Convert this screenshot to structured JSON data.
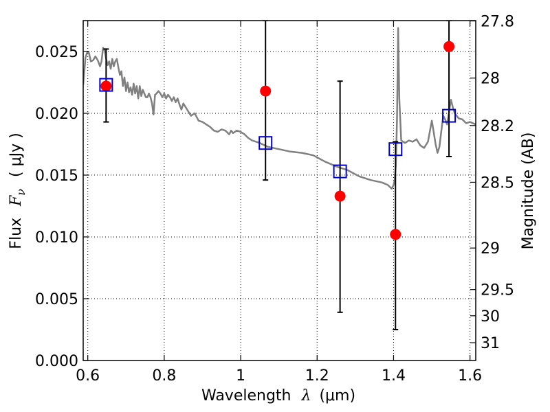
{
  "chart_data": {
    "type": "scatter",
    "xlabel": "Wavelength",
    "xlabel_symbol": "λ",
    "xlabel_unit": "(μm)",
    "ylabel": "Flux",
    "ylabel_symbol": "F",
    "ylabel_subscript": "ν",
    "ylabel_unit": "( μJy )",
    "y2label": "Magnitude (AB)",
    "xlim": [
      0.588,
      1.615
    ],
    "ylim": [
      0.0,
      0.0275
    ],
    "grid": true,
    "x_ticks": [
      0.6,
      0.8,
      1.0,
      1.2,
      1.4,
      1.6
    ],
    "x_tick_labels": [
      "0.6",
      "0.8",
      "1",
      "1.2",
      "1.4",
      "1.6"
    ],
    "y_ticks": [
      0.0,
      0.005,
      0.01,
      0.015,
      0.02,
      0.025
    ],
    "y_tick_labels": [
      "0.000",
      "0.005",
      "0.010",
      "0.015",
      "0.020",
      "0.025"
    ],
    "y2_ticks": [
      {
        "label": "27.8",
        "flux": 0.02747
      },
      {
        "label": "28",
        "flux": 0.02285
      },
      {
        "label": "28.2",
        "flux": 0.01901
      },
      {
        "label": "28.5",
        "flux": 0.01442
      },
      {
        "label": "29",
        "flux": 0.0091
      },
      {
        "label": "29.5",
        "flux": 0.00574
      },
      {
        "label": "30",
        "flux": 0.00362
      },
      {
        "label": "31",
        "flux": 0.00144
      }
    ],
    "series": [
      {
        "type": "line",
        "color": "#808080",
        "x": [
          0.588,
          0.594,
          0.598,
          0.603,
          0.608,
          0.614,
          0.62,
          0.626,
          0.632,
          0.636,
          0.64,
          0.644,
          0.648,
          0.652,
          0.656,
          0.66,
          0.664,
          0.668,
          0.672,
          0.676,
          0.68,
          0.684,
          0.688,
          0.692,
          0.696,
          0.7,
          0.704,
          0.708,
          0.712,
          0.716,
          0.72,
          0.724,
          0.728,
          0.732,
          0.736,
          0.74,
          0.744,
          0.748,
          0.752,
          0.756,
          0.76,
          0.764,
          0.768,
          0.772,
          0.776,
          0.78,
          0.785,
          0.79,
          0.795,
          0.8,
          0.805,
          0.81,
          0.815,
          0.82,
          0.825,
          0.83,
          0.835,
          0.84,
          0.845,
          0.85,
          0.86,
          0.87,
          0.88,
          0.89,
          0.9,
          0.91,
          0.92,
          0.93,
          0.94,
          0.95,
          0.96,
          0.97,
          0.975,
          0.98,
          0.99,
          1.0,
          1.01,
          1.02,
          1.03,
          1.05,
          1.07,
          1.1,
          1.13,
          1.16,
          1.19,
          1.22,
          1.25,
          1.28,
          1.31,
          1.34,
          1.37,
          1.385,
          1.395,
          1.4,
          1.403,
          1.406,
          1.409,
          1.412,
          1.415,
          1.42,
          1.43,
          1.44,
          1.45,
          1.46,
          1.47,
          1.48,
          1.49,
          1.5,
          1.505,
          1.51,
          1.515,
          1.52,
          1.525,
          1.53,
          1.535,
          1.54,
          1.545,
          1.55,
          1.555,
          1.56,
          1.57,
          1.58,
          1.59,
          1.6,
          1.615
        ],
        "y": [
          0.0223,
          0.0245,
          0.0249,
          0.0249,
          0.0242,
          0.0243,
          0.0246,
          0.0243,
          0.0238,
          0.0242,
          0.0253,
          0.0251,
          0.0244,
          0.0239,
          0.0242,
          0.0236,
          0.0244,
          0.0238,
          0.0242,
          0.0244,
          0.0237,
          0.0231,
          0.0234,
          0.0222,
          0.0229,
          0.0218,
          0.0225,
          0.0217,
          0.0221,
          0.0215,
          0.0224,
          0.0216,
          0.0222,
          0.0212,
          0.0222,
          0.0214,
          0.0219,
          0.0216,
          0.0213,
          0.0213,
          0.0216,
          0.0213,
          0.0208,
          0.0199,
          0.0215,
          0.0216,
          0.0218,
          0.0216,
          0.0213,
          0.0216,
          0.0212,
          0.0215,
          0.0213,
          0.021,
          0.0213,
          0.0209,
          0.0212,
          0.0207,
          0.0203,
          0.0208,
          0.0203,
          0.0198,
          0.02,
          0.0194,
          0.0193,
          0.0191,
          0.0189,
          0.0186,
          0.0185,
          0.0187,
          0.0186,
          0.0183,
          0.0186,
          0.0184,
          0.0186,
          0.0185,
          0.0183,
          0.018,
          0.0178,
          0.0176,
          0.0173,
          0.0171,
          0.0169,
          0.0168,
          0.0166,
          0.0161,
          0.0157,
          0.0154,
          0.0149,
          0.0146,
          0.0144,
          0.0142,
          0.0139,
          0.0142,
          0.0146,
          0.0158,
          0.0196,
          0.0269,
          0.0212,
          0.0178,
          0.0176,
          0.0178,
          0.0177,
          0.0179,
          0.0174,
          0.0172,
          0.0177,
          0.0194,
          0.0185,
          0.0175,
          0.0168,
          0.0173,
          0.0186,
          0.0198,
          0.0195,
          0.0191,
          0.0201,
          0.0211,
          0.0205,
          0.02,
          0.0196,
          0.0195,
          0.0192,
          0.0193,
          0.0191
        ]
      },
      {
        "type": "errorbar",
        "color": "#000000",
        "points": [
          {
            "x": 0.648,
            "low": 0.0193,
            "high": 0.0252
          },
          {
            "x": 1.065,
            "low": 0.0146,
            "high": 0.0275
          },
          {
            "x": 1.26,
            "low": 0.0039,
            "high": 0.0226
          },
          {
            "x": 1.405,
            "low": 0.0025,
            "high": 0.0177
          },
          {
            "x": 1.545,
            "low": 0.0165,
            "high": 0.0275
          }
        ]
      },
      {
        "type": "scatter",
        "marker": "circle",
        "color": "#ff0000",
        "points": [
          {
            "x": 0.648,
            "y": 0.0222
          },
          {
            "x": 1.065,
            "y": 0.0218
          },
          {
            "x": 1.26,
            "y": 0.0133
          },
          {
            "x": 1.405,
            "y": 0.0102
          },
          {
            "x": 1.545,
            "y": 0.0254
          }
        ]
      },
      {
        "type": "scatter",
        "marker": "square-open",
        "color": "#0000cc",
        "points": [
          {
            "x": 0.648,
            "y": 0.0223
          },
          {
            "x": 1.065,
            "y": 0.0176
          },
          {
            "x": 1.26,
            "y": 0.0153
          },
          {
            "x": 1.405,
            "y": 0.0171
          },
          {
            "x": 1.545,
            "y": 0.0198
          }
        ]
      }
    ]
  }
}
